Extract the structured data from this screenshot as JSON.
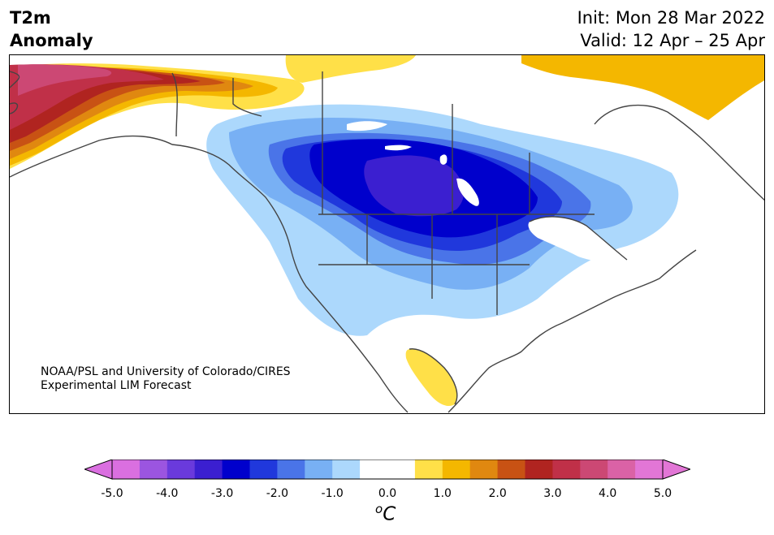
{
  "title": {
    "line1": "T2m",
    "line2": "Anomaly"
  },
  "info": {
    "init": "Init: Mon 28 Mar 2022",
    "valid": "Valid: 12 Apr – 25 Apr"
  },
  "credit": {
    "line1": "NOAA/PSL and University of Colorado/CIRES",
    "line2": "Experimental LIM Forecast"
  },
  "colorbar": {
    "unit_symbol": "o",
    "unit_letter": "C",
    "ticks": [
      "-5.0",
      "-4.0",
      "-3.0",
      "-2.0",
      "-1.0",
      "0.0",
      "1.0",
      "2.0",
      "3.0",
      "4.0",
      "5.0"
    ],
    "colors": [
      "#da6fe0",
      "#9b55e0",
      "#6a3adc",
      "#3b1fd0",
      "#0000cc",
      "#2038dc",
      "#4a74e8",
      "#78b0f4",
      "#acd8fc",
      "#ffffff",
      "#ffffff",
      "#ffe048",
      "#f4b700",
      "#e08810",
      "#c85214",
      "#b02420",
      "#c03048",
      "#cc4874",
      "#da62a6",
      "#e276d6"
    ],
    "under_color": "#da6fe0",
    "over_color": "#e276d6"
  },
  "map": {
    "colors": {
      "land_outline": "#444444",
      "cold_1": "#acd8fc",
      "cold_2": "#78b0f4",
      "cold_3": "#4a74e8",
      "cold_4": "#2038dc",
      "cold_5": "#0000cc",
      "cold_6": "#3b1fd0",
      "warm_1": "#ffe048",
      "warm_2": "#f4b700",
      "warm_3": "#e08810",
      "warm_4": "#c85214",
      "warm_5": "#b02420",
      "warm_6": "#c03048",
      "warm_7": "#cc4874"
    }
  }
}
